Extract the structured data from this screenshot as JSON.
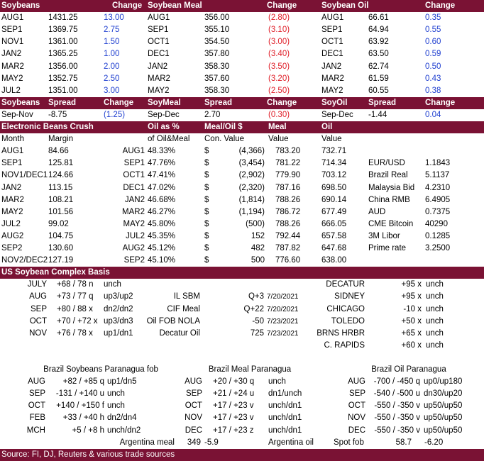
{
  "futures": {
    "header": [
      "Soybeans",
      "Change",
      "Soybean Meal",
      "Change",
      "Soybean Oil",
      "Change"
    ],
    "rows": [
      [
        "AUG1",
        "1431.25",
        "13.00",
        "AUG1",
        "356.00",
        "(2.80)",
        "AUG1",
        "66.61",
        "0.35"
      ],
      [
        "SEP1",
        "1369.75",
        "2.75",
        "SEP1",
        "355.10",
        "(3.10)",
        "SEP1",
        "64.94",
        "0.55"
      ],
      [
        "NOV1",
        "1361.00",
        "1.50",
        "OCT1",
        "354.50",
        "(3.00)",
        "OCT1",
        "63.92",
        "0.60"
      ],
      [
        "JAN2",
        "1365.25",
        "1.00",
        "DEC1",
        "357.80",
        "(3.40)",
        "DEC1",
        "63.50",
        "0.59"
      ],
      [
        "MAR2",
        "1356.00",
        "2.00",
        "JAN2",
        "358.30",
        "(3.50)",
        "JAN2",
        "62.74",
        "0.50"
      ],
      [
        "MAY2",
        "1352.75",
        "2.50",
        "MAR2",
        "357.60",
        "(3.20)",
        "MAR2",
        "61.59",
        "0.43"
      ],
      [
        "JUL2",
        "1351.00",
        "3.00",
        "MAY2",
        "358.30",
        "(2.50)",
        "MAY2",
        "60.55",
        "0.38"
      ]
    ]
  },
  "spreads": {
    "header": [
      "Soybeans",
      "Spread",
      "Change",
      "SoyMeal",
      "Spread",
      "Change",
      "SoyOil",
      "Spread",
      "Change"
    ],
    "row": [
      "Sep-Nov",
      "-8.75",
      "(1.25)",
      "Sep-Dec",
      "2.70",
      "(0.30)",
      "Sep-Dec",
      "-1.44",
      "0.04"
    ]
  },
  "crush": {
    "header": [
      "Electronic Beans Crush",
      "Oil as %",
      "Meal/Oil $",
      "Meal",
      "Oil"
    ],
    "subheader": [
      "Month",
      "Margin",
      "of Oil&Meal",
      "Con. Value",
      "Value",
      "Value"
    ],
    "rows": [
      [
        "AUG1",
        "84.66",
        "AUG1",
        "48.33%",
        "$",
        "(4,366)",
        "783.20",
        "732.71"
      ],
      [
        "SEP1",
        "125.81",
        "SEP1",
        "47.76%",
        "$",
        "(3,454)",
        "781.22",
        "714.34"
      ],
      [
        "NOV1/DEC1",
        "124.66",
        "OCT1",
        "47.41%",
        "$",
        "(2,902)",
        "779.90",
        "703.12"
      ],
      [
        "JAN2",
        "113.15",
        "DEC1",
        "47.02%",
        "$",
        "(2,320)",
        "787.16",
        "698.50"
      ],
      [
        "MAR2",
        "108.21",
        "JAN2",
        "46.68%",
        "$",
        "(1,814)",
        "788.26",
        "690.14"
      ],
      [
        "MAY2",
        "101.56",
        "MAR2",
        "46.27%",
        "$",
        "(1,194)",
        "786.72",
        "677.49"
      ],
      [
        "JUL2",
        "99.02",
        "MAY2",
        "45.80%",
        "$",
        "(500)",
        "788.26",
        "666.05"
      ],
      [
        "AUG2",
        "104.75",
        "JUL2",
        "45.35%",
        "$",
        "152",
        "792.44",
        "657.58"
      ],
      [
        "SEP2",
        "130.60",
        "AUG2",
        "45.12%",
        "$",
        "482",
        "787.82",
        "647.68"
      ],
      [
        "NOV2/DEC2",
        "127.19",
        "SEP2",
        "45.10%",
        "$",
        "500",
        "776.60",
        "638.00"
      ]
    ],
    "markets": [
      [
        "EUR/USD",
        "1.1843"
      ],
      [
        "Brazil Real",
        "5.1137"
      ],
      [
        "Malaysia Bid",
        "4.2310"
      ],
      [
        "China RMB",
        "6.4905"
      ],
      [
        "AUD",
        "0.7375"
      ],
      [
        "CME Bitcoin",
        "40290"
      ],
      [
        "3M Libor",
        "0.1285"
      ],
      [
        "Prime rate",
        "3.2500"
      ]
    ]
  },
  "basis": {
    "title": "US Soybean Complex Basis",
    "cash": [
      [
        "JULY",
        "+68 / 78 n",
        "unch"
      ],
      [
        "AUG",
        "+73 / 77 q",
        "up3/up2"
      ],
      [
        "SEP",
        "+80 / 88 x",
        "dn2/dn2"
      ],
      [
        "OCT",
        "+70 / +72 x",
        "up3/dn3"
      ],
      [
        "NOV",
        "+76 / 78 x",
        "up1/dn1"
      ]
    ],
    "products": [
      [
        "IL SBM",
        "Q+3",
        "7/20/2021"
      ],
      [
        "CIF Meal",
        "Q+22",
        "7/20/2021"
      ],
      [
        "Oil FOB NOLA",
        "-50",
        "7/23/2021"
      ],
      [
        "Decatur Oil",
        "725",
        "7/23/2021"
      ]
    ],
    "locations": [
      [
        "DECATUR",
        "+95 x",
        "unch"
      ],
      [
        "SIDNEY",
        "+95 x",
        "unch"
      ],
      [
        "CHICAGO",
        "-10 x",
        "unch"
      ],
      [
        "TOLEDO",
        "+50 x",
        "unch"
      ],
      [
        "BRNS HRBR",
        "+65 x",
        "unch"
      ],
      [
        "C. RAPIDS",
        "+60 x",
        "unch"
      ]
    ]
  },
  "brazil": {
    "header": [
      "Brazil Soybeans Paranagua fob",
      "Brazil Meal Paranagua",
      "Brazil Oil Paranagua"
    ],
    "soybeans": [
      [
        "AUG",
        "+82 / +85 q",
        "up1/dn5"
      ],
      [
        "SEP",
        "-131 / +140 u",
        "unch"
      ],
      [
        "OCT",
        "+140 / +150 f",
        "unch"
      ],
      [
        "FEB",
        "+33 / +40 h",
        "dn2/dn4"
      ],
      [
        "MCH",
        "+5 / +8 h",
        "unch/dn2"
      ]
    ],
    "meal": [
      [
        "AUG",
        "+20 / +30 q",
        "unch"
      ],
      [
        "SEP",
        "+21 / +24 u",
        "dn1/unch"
      ],
      [
        "OCT",
        "+17 / +23 v",
        "unch/dn1"
      ],
      [
        "NOV",
        "+17 / +23 v",
        "unch/dn1"
      ],
      [
        "DEC",
        "+17 / +23 z",
        "unch/dn1"
      ]
    ],
    "oil": [
      [
        "AUG",
        "-700 / -450 q",
        "up0/up180"
      ],
      [
        "SEP",
        "-540 / -500 u",
        "dn30/up20"
      ],
      [
        "OCT",
        "-550 / -350 v",
        "up50/up50"
      ],
      [
        "NOV",
        "-550 / -350 v",
        "up50/up50"
      ],
      [
        "DEC",
        "-550 / -350 v",
        "up50/up50"
      ]
    ],
    "argentina": [
      "Argentina meal",
      "349",
      "-5.9",
      "Argentina oil",
      "Spot fob",
      "58.7",
      "-6.20"
    ]
  },
  "source": "Source: FI, DJ, Reuters & various trade sources"
}
